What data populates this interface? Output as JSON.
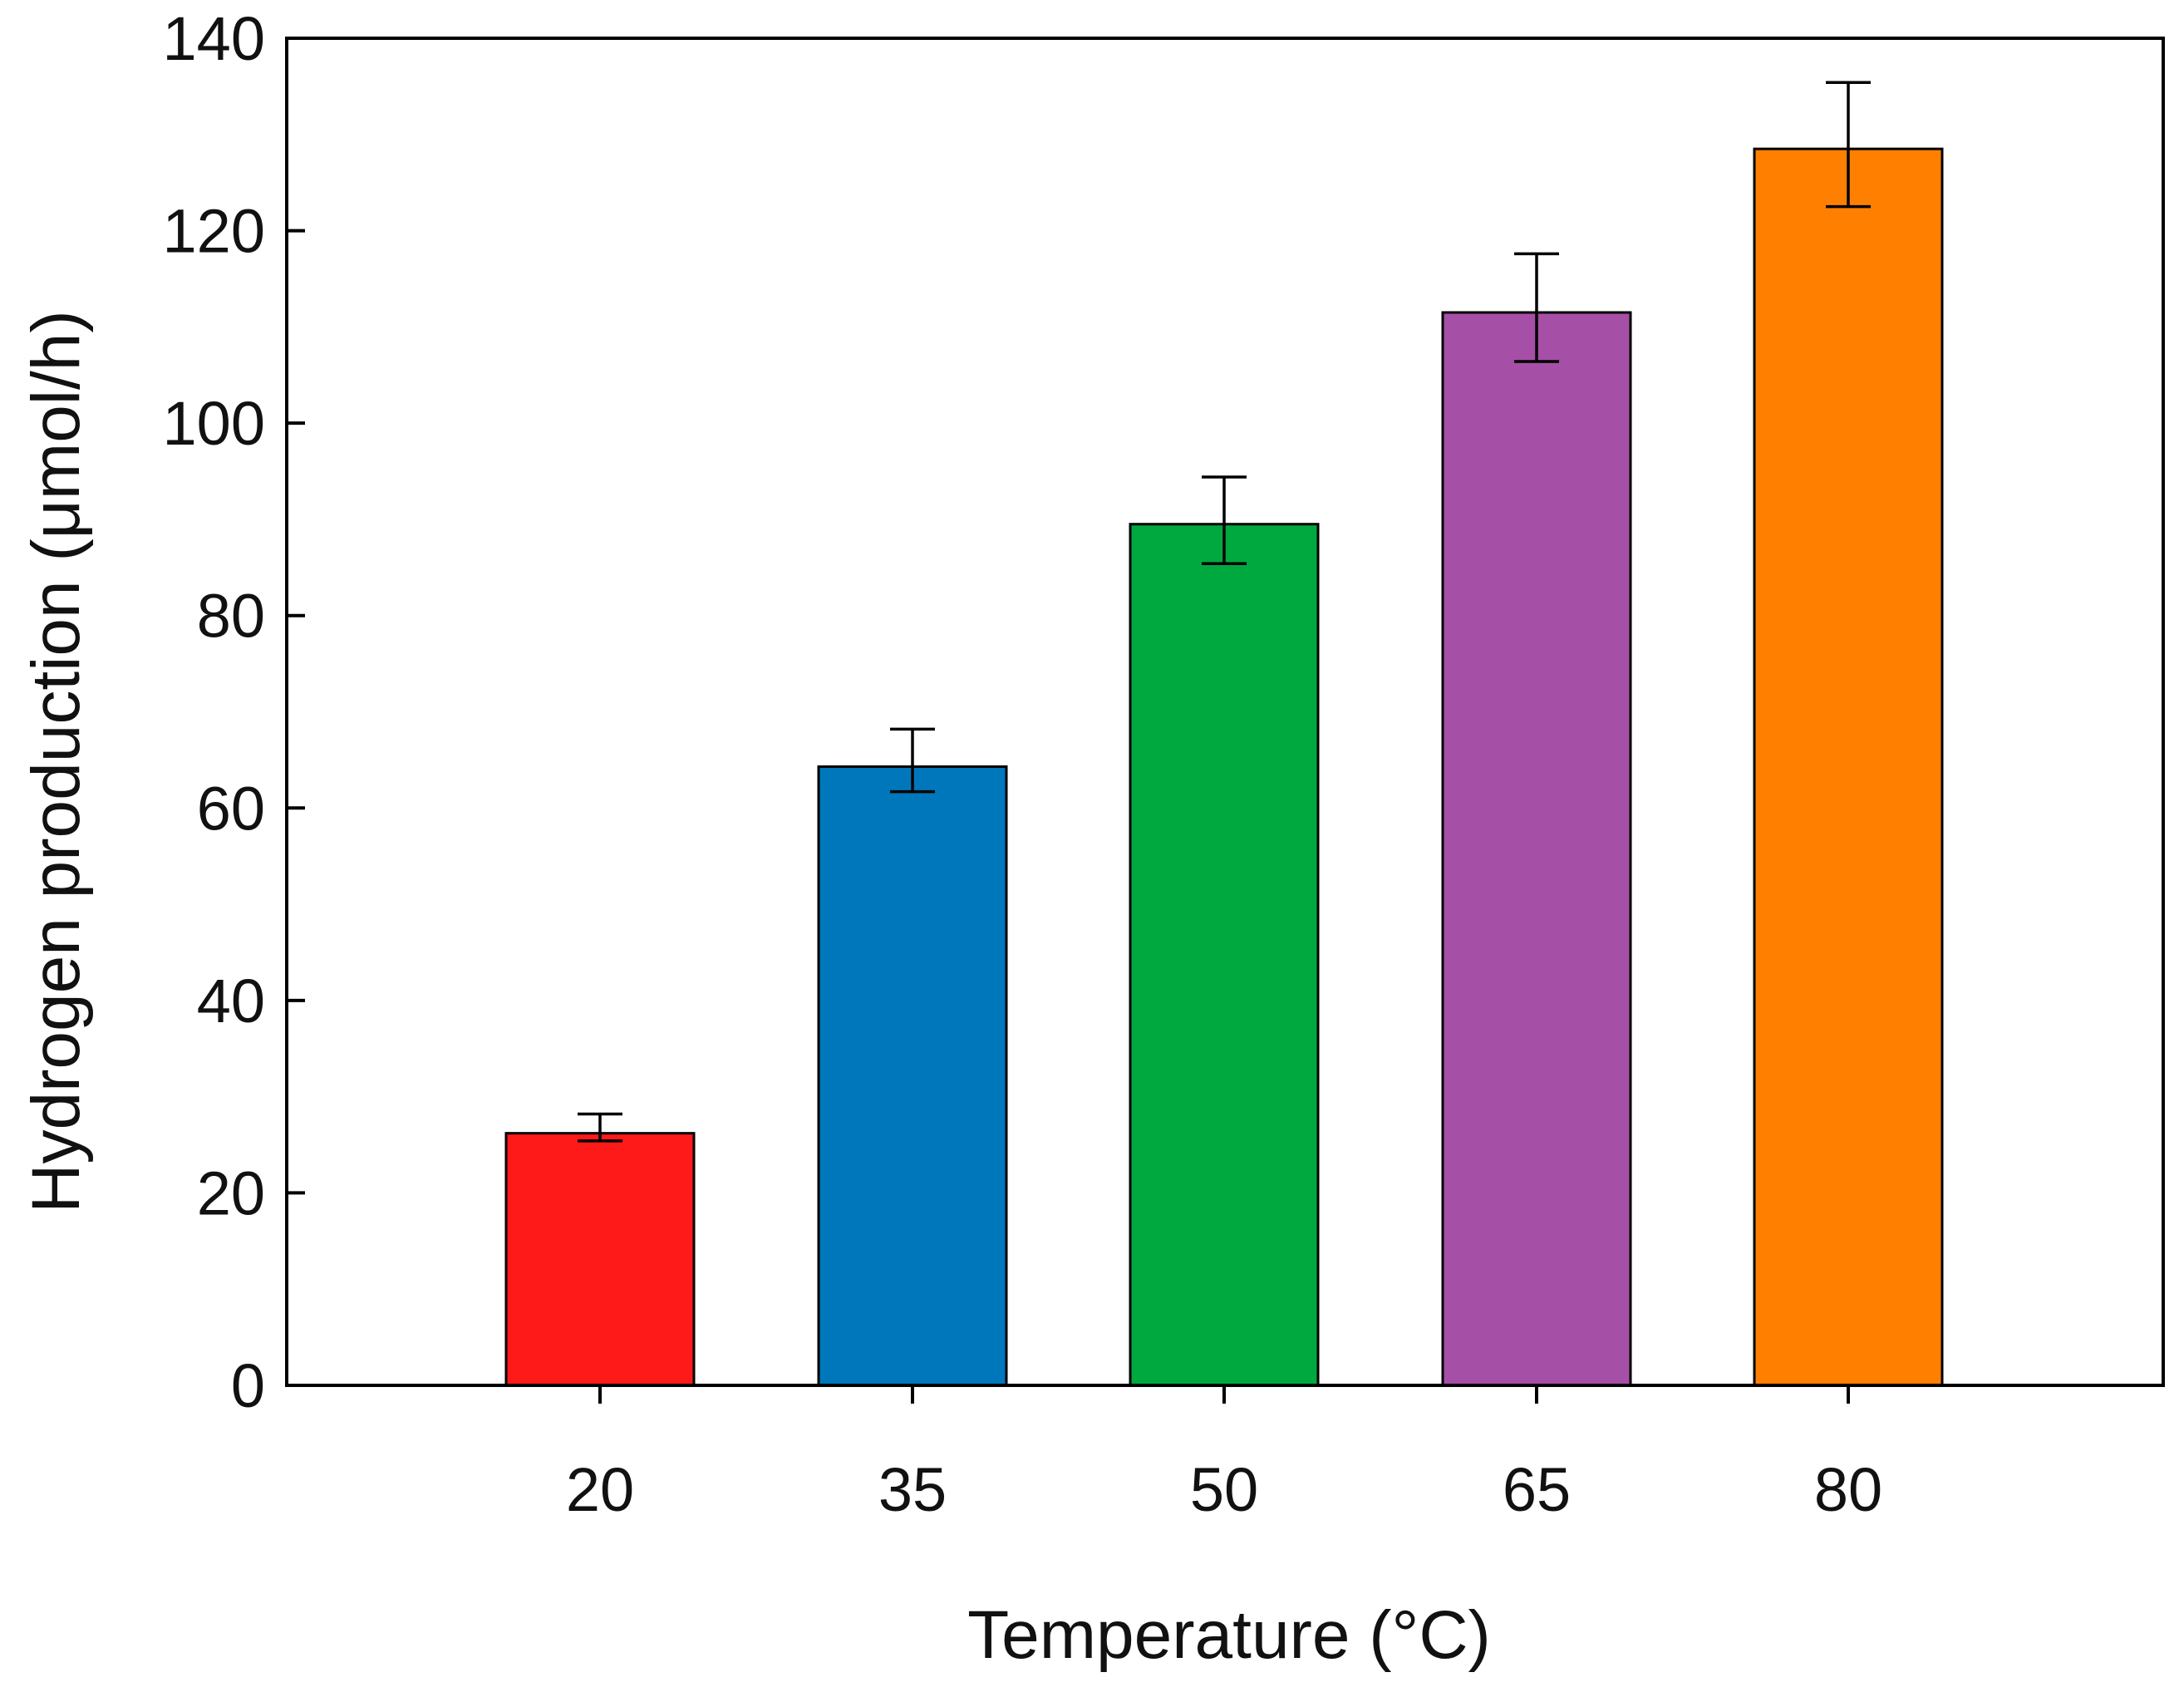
{
  "chart_data": {
    "type": "bar",
    "title": "",
    "xlabel": "Temperature (°C)",
    "ylabel": "Hydrogen production (μmol/h)",
    "categories": [
      "20",
      "35",
      "50",
      "65",
      "80"
    ],
    "values": [
      26.2,
      64.3,
      89.5,
      111.5,
      128.5
    ],
    "errors_upper": [
      28.2,
      68.2,
      94.4,
      117.6,
      135.4
    ],
    "errors_lower": [
      25.4,
      61.7,
      85.4,
      106.4,
      122.5
    ],
    "colors": [
      "#ff1a1a",
      "#0077bb",
      "#00a940",
      "#a64fa6",
      "#ff8000"
    ],
    "ylim": [
      0,
      140
    ],
    "yticks": [
      0,
      20,
      40,
      60,
      80,
      100,
      120,
      140
    ],
    "grid": false,
    "legend": "none"
  }
}
